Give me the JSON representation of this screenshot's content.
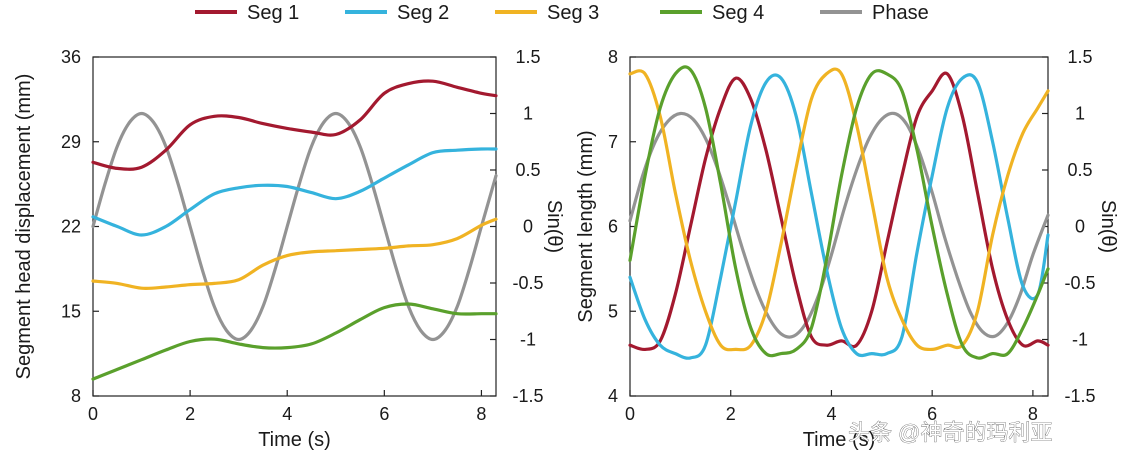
{
  "legend": [
    {
      "name": "Seg 1",
      "color": "#a3192f"
    },
    {
      "name": "Seg 2",
      "color": "#35b3dd"
    },
    {
      "name": "Seg 3",
      "color": "#f0b323"
    },
    {
      "name": "Seg 4",
      "color": "#5aa02c"
    },
    {
      "name": "Phase",
      "color": "#939393"
    }
  ],
  "watermark": "头条 @神奇的玛利亚",
  "chart_data": [
    {
      "type": "line",
      "xlabel": "Time (s)",
      "ylabel": "Segment head displacement (mm)",
      "y2label": "Sin(θ)",
      "xlim": [
        0,
        8.3
      ],
      "ylim": [
        8,
        36
      ],
      "y2lim": [
        -1.5,
        1.5
      ],
      "xticks": [
        0,
        2,
        4,
        6,
        8
      ],
      "yticks": [
        8,
        15,
        22,
        29,
        36
      ],
      "y2ticks": [
        "1.5",
        "1",
        "0.5",
        "0",
        "-0.5",
        "-1",
        "-1.5"
      ],
      "y2tick_values": [
        1.5,
        1,
        0.5,
        0,
        -0.5,
        -1,
        -1.5
      ],
      "series": [
        {
          "name": "Seg 1",
          "axis": "y",
          "x": [
            0,
            0.5,
            1,
            1.5,
            2,
            2.5,
            3,
            3.5,
            4,
            4.5,
            5,
            5.5,
            6,
            6.5,
            7,
            7.5,
            8,
            8.3
          ],
          "values": [
            27.3,
            26.8,
            26.9,
            28.3,
            30.4,
            31.1,
            31.0,
            30.5,
            30.1,
            29.8,
            29.6,
            30.8,
            33.0,
            33.8,
            34.0,
            33.5,
            33.0,
            32.8
          ]
        },
        {
          "name": "Seg 2",
          "axis": "y",
          "x": [
            0,
            0.5,
            1,
            1.5,
            2,
            2.5,
            3,
            3.5,
            4,
            4.5,
            5,
            5.5,
            6,
            6.5,
            7,
            7.5,
            8,
            8.3
          ],
          "values": [
            22.8,
            22.0,
            21.3,
            22.0,
            23.4,
            24.7,
            25.2,
            25.4,
            25.3,
            24.8,
            24.3,
            24.9,
            26.0,
            27.1,
            28.1,
            28.3,
            28.4,
            28.4
          ]
        },
        {
          "name": "Seg 3",
          "axis": "y",
          "x": [
            0,
            0.5,
            1,
            1.5,
            2,
            2.5,
            3,
            3.5,
            4,
            4.5,
            5,
            5.5,
            6,
            6.5,
            7,
            7.5,
            8,
            8.3
          ],
          "values": [
            17.5,
            17.3,
            16.9,
            17.0,
            17.2,
            17.3,
            17.6,
            18.8,
            19.6,
            19.9,
            20.0,
            20.1,
            20.2,
            20.4,
            20.5,
            21.0,
            22.1,
            22.6
          ]
        },
        {
          "name": "Seg 4",
          "axis": "y",
          "x": [
            0,
            0.5,
            1,
            1.5,
            2,
            2.5,
            3,
            3.5,
            4,
            4.5,
            5,
            5.5,
            6,
            6.5,
            7,
            7.5,
            8,
            8.3
          ],
          "values": [
            9.4,
            10.2,
            11.0,
            11.8,
            12.5,
            12.7,
            12.3,
            12.0,
            12.0,
            12.3,
            13.2,
            14.3,
            15.3,
            15.6,
            15.2,
            14.8,
            14.8,
            14.8
          ]
        },
        {
          "name": "Phase",
          "axis": "y2",
          "x": [
            0,
            0.25,
            0.5,
            0.75,
            1,
            1.25,
            1.5,
            1.75,
            2,
            2.25,
            2.5,
            2.75,
            3,
            3.25,
            3.5,
            3.75,
            4,
            4.25,
            4.5,
            4.75,
            5,
            5.25,
            5.5,
            5.75,
            6,
            6.25,
            6.5,
            6.75,
            7,
            7.25,
            7.5,
            7.75,
            8,
            8.3
          ],
          "values": [
            0,
            0.38,
            0.71,
            0.92,
            1.0,
            0.92,
            0.71,
            0.38,
            0,
            -0.38,
            -0.71,
            -0.92,
            -1.0,
            -0.92,
            -0.71,
            -0.38,
            0,
            0.38,
            0.71,
            0.92,
            1.0,
            0.92,
            0.71,
            0.38,
            0,
            -0.38,
            -0.71,
            -0.92,
            -1.0,
            -0.92,
            -0.71,
            -0.38,
            0,
            0.45
          ]
        }
      ]
    },
    {
      "type": "line",
      "xlabel": "Time (s)",
      "ylabel": "Segment length (mm)",
      "y2label": "Sin(θ)",
      "xlim": [
        0,
        8.3
      ],
      "ylim": [
        4,
        8
      ],
      "y2lim": [
        -1.5,
        1.5
      ],
      "xticks": [
        0,
        2,
        4,
        6,
        8
      ],
      "yticks": [
        4,
        5,
        6,
        7,
        8
      ],
      "y2ticks": [
        "1.5",
        "1",
        "0.5",
        "0",
        "-0.5",
        "-1",
        "-1.5"
      ],
      "y2tick_values": [
        1.5,
        1,
        0.5,
        0,
        -0.5,
        -1,
        -1.5
      ],
      "series": [
        {
          "name": "Seg 1",
          "axis": "y",
          "x": [
            0,
            0.3,
            0.6,
            0.9,
            1.2,
            1.5,
            1.8,
            2.1,
            2.4,
            2.7,
            3.0,
            3.3,
            3.6,
            3.9,
            4.2,
            4.5,
            4.8,
            5.1,
            5.4,
            5.7,
            6.0,
            6.3,
            6.6,
            6.9,
            7.2,
            7.5,
            7.8,
            8.1,
            8.3
          ],
          "values": [
            4.6,
            4.55,
            4.65,
            5.2,
            6.0,
            6.8,
            7.4,
            7.75,
            7.5,
            6.9,
            6.1,
            5.3,
            4.7,
            4.6,
            4.65,
            4.6,
            5.0,
            5.8,
            6.6,
            7.3,
            7.6,
            7.8,
            7.3,
            6.4,
            5.5,
            4.9,
            4.6,
            4.65,
            4.6
          ]
        },
        {
          "name": "Seg 2",
          "axis": "y",
          "x": [
            0,
            0.3,
            0.6,
            0.9,
            1.2,
            1.5,
            1.8,
            2.1,
            2.4,
            2.7,
            3.0,
            3.3,
            3.6,
            3.9,
            4.2,
            4.5,
            4.8,
            5.1,
            5.4,
            5.7,
            6.0,
            6.3,
            6.6,
            6.9,
            7.2,
            7.5,
            7.8,
            8.1,
            8.3
          ],
          "values": [
            5.4,
            4.9,
            4.6,
            4.5,
            4.45,
            4.6,
            5.4,
            6.3,
            7.2,
            7.7,
            7.75,
            7.3,
            6.4,
            5.5,
            4.8,
            4.5,
            4.5,
            4.5,
            4.7,
            5.7,
            6.6,
            7.4,
            7.75,
            7.7,
            7.0,
            6.1,
            5.3,
            5.2,
            5.9
          ]
        },
        {
          "name": "Seg 3",
          "axis": "y",
          "x": [
            0,
            0.3,
            0.6,
            0.9,
            1.2,
            1.5,
            1.8,
            2.1,
            2.4,
            2.7,
            3.0,
            3.3,
            3.6,
            3.9,
            4.2,
            4.5,
            4.8,
            5.1,
            5.4,
            5.7,
            6.0,
            6.3,
            6.6,
            6.9,
            7.2,
            7.5,
            7.8,
            8.1,
            8.3
          ],
          "values": [
            7.8,
            7.8,
            7.3,
            6.4,
            5.6,
            5.0,
            4.6,
            4.55,
            4.6,
            5.0,
            5.8,
            6.7,
            7.5,
            7.8,
            7.8,
            7.2,
            6.3,
            5.4,
            4.9,
            4.6,
            4.55,
            4.6,
            4.6,
            5.0,
            5.9,
            6.6,
            7.1,
            7.4,
            7.6
          ]
        },
        {
          "name": "Seg 4",
          "axis": "y",
          "x": [
            0,
            0.3,
            0.6,
            0.9,
            1.2,
            1.5,
            1.8,
            2.1,
            2.4,
            2.7,
            3.0,
            3.3,
            3.6,
            3.9,
            4.2,
            4.5,
            4.8,
            5.1,
            5.4,
            5.7,
            6.0,
            6.3,
            6.6,
            6.9,
            7.2,
            7.5,
            7.8,
            8.1,
            8.3
          ],
          "values": [
            5.6,
            6.6,
            7.4,
            7.8,
            7.85,
            7.4,
            6.5,
            5.5,
            4.8,
            4.5,
            4.5,
            4.55,
            4.8,
            5.6,
            6.6,
            7.4,
            7.8,
            7.8,
            7.6,
            6.9,
            6.0,
            5.2,
            4.6,
            4.45,
            4.5,
            4.5,
            4.8,
            5.2,
            5.5
          ]
        },
        {
          "name": "Phase",
          "axis": "y2",
          "x": [
            0,
            0.25,
            0.5,
            0.75,
            1,
            1.25,
            1.5,
            1.75,
            2,
            2.25,
            2.5,
            2.75,
            3,
            3.25,
            3.5,
            3.75,
            4,
            4.25,
            4.5,
            4.75,
            5,
            5.25,
            5.5,
            5.75,
            6,
            6.25,
            6.5,
            6.75,
            7,
            7.25,
            7.5,
            7.75,
            8,
            8.3
          ],
          "values": [
            0.05,
            0.45,
            0.75,
            0.93,
            1.0,
            0.95,
            0.78,
            0.5,
            0.15,
            -0.22,
            -0.55,
            -0.8,
            -0.95,
            -0.97,
            -0.85,
            -0.6,
            -0.25,
            0.15,
            0.5,
            0.78,
            0.95,
            1.0,
            0.9,
            0.65,
            0.3,
            -0.1,
            -0.45,
            -0.75,
            -0.93,
            -0.97,
            -0.85,
            -0.6,
            -0.25,
            0.1
          ]
        }
      ]
    }
  ]
}
